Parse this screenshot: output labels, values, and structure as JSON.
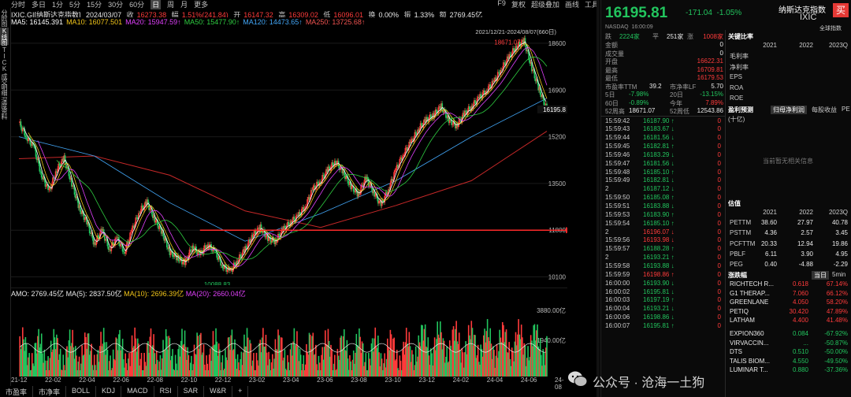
{
  "toolbar": {
    "left": [
      "分时",
      "多日",
      "1分",
      "5分",
      "15分",
      "30分",
      "60分",
      "日",
      "周",
      "月",
      "更多"
    ],
    "selected": "日",
    "right": [
      "F9",
      "复权",
      "超级叠加",
      "画线",
      "工具"
    ]
  },
  "rail": [
    "分时图",
    "K线图",
    "TICK",
    "成交明细",
    "深度资料"
  ],
  "info": {
    "name": "IXIC.GI[纳斯达克指数]",
    "date": "2024/03/07",
    "open_label": "收",
    "open": "16273.38",
    "amp_label": "幅",
    "amp": "1.51%(241.84)",
    "o_label": "开",
    "o": "16147.32",
    "h_label": "高",
    "h": "16309.02",
    "l_label": "低",
    "l": "16096.01",
    "turn_label": "换",
    "turn": "0.00%",
    "swing_label": "振",
    "swing": "1.33%",
    "vol_label": "额",
    "vol": "2769.45亿"
  },
  "mas": [
    {
      "label": "MA5",
      "value": "16145.391",
      "cls": "c-ma5"
    },
    {
      "label": "MA10",
      "value": "16077.501",
      "cls": "c-ma10"
    },
    {
      "label": "MA20",
      "value": "15947.59↑",
      "cls": "c-ma20"
    },
    {
      "label": "MA50",
      "value": "15477.90↑",
      "cls": "c-ma50"
    },
    {
      "label": "MA120",
      "value": "14473.65↑",
      "cls": "c-ma120"
    },
    {
      "label": "MA250",
      "value": "13725.68↑",
      "cls": "c-ma250"
    }
  ],
  "chart_data": {
    "type": "candlestick",
    "range_label": "2021/12/21-2024/08/07(660日)",
    "y_ticks": [
      "18600",
      "16900",
      "15200",
      "13500",
      "11800",
      "10100"
    ],
    "y_range": [
      9800,
      19200
    ],
    "current_price_label": "16195.8",
    "high_label": "18671.07",
    "low_label": "10088.83",
    "x_ticks": [
      "21-12",
      "22-02",
      "22-04",
      "22-06",
      "22-08",
      "22-10",
      "22-12",
      "23-02",
      "23-04",
      "23-06",
      "23-08",
      "23-10",
      "23-12",
      "24-02",
      "24-04",
      "24-06",
      "24-08"
    ],
    "close_path": [
      [
        0,
        15700
      ],
      [
        2,
        15200
      ],
      [
        4,
        14800
      ],
      [
        6,
        13800
      ],
      [
        8,
        13200
      ],
      [
        10,
        14000
      ],
      [
        12,
        14400
      ],
      [
        14,
        13500
      ],
      [
        16,
        12600
      ],
      [
        18,
        12100
      ],
      [
        20,
        11300
      ],
      [
        22,
        11800
      ],
      [
        24,
        11100
      ],
      [
        26,
        11500
      ],
      [
        28,
        11000
      ],
      [
        30,
        11800
      ],
      [
        32,
        12500
      ],
      [
        34,
        12800
      ],
      [
        36,
        12200
      ],
      [
        38,
        11700
      ],
      [
        40,
        11000
      ],
      [
        42,
        10800
      ],
      [
        44,
        10600
      ],
      [
        46,
        11200
      ],
      [
        48,
        10900
      ],
      [
        50,
        11300
      ],
      [
        52,
        11000
      ],
      [
        54,
        10500
      ],
      [
        56,
        10300
      ],
      [
        58,
        10700
      ],
      [
        60,
        11100
      ],
      [
        62,
        11600
      ],
      [
        64,
        11900
      ],
      [
        66,
        11500
      ],
      [
        68,
        11400
      ],
      [
        70,
        11800
      ],
      [
        72,
        12100
      ],
      [
        74,
        12300
      ],
      [
        76,
        12700
      ],
      [
        78,
        13300
      ],
      [
        80,
        13600
      ],
      [
        82,
        14000
      ],
      [
        84,
        14300
      ],
      [
        86,
        13900
      ],
      [
        88,
        13400
      ],
      [
        90,
        13100
      ],
      [
        92,
        13700
      ],
      [
        94,
        13200
      ],
      [
        96,
        12700
      ],
      [
        98,
        13300
      ],
      [
        100,
        14000
      ],
      [
        102,
        14600
      ],
      [
        104,
        15000
      ],
      [
        106,
        15500
      ],
      [
        108,
        15800
      ],
      [
        110,
        16000
      ],
      [
        112,
        16300
      ],
      [
        114,
        15800
      ],
      [
        116,
        15600
      ],
      [
        118,
        16000
      ],
      [
        120,
        16300
      ],
      [
        122,
        16600
      ],
      [
        124,
        16900
      ],
      [
        126,
        17200
      ],
      [
        128,
        17700
      ],
      [
        130,
        18100
      ],
      [
        132,
        18500
      ],
      [
        134,
        18671
      ],
      [
        136,
        17700
      ],
      [
        138,
        16900
      ],
      [
        140,
        16196
      ]
    ],
    "ma_long_path": [
      [
        0,
        14400
      ],
      [
        20,
        14500
      ],
      [
        40,
        13800
      ],
      [
        60,
        12500
      ],
      [
        80,
        11900
      ],
      [
        100,
        12700
      ],
      [
        120,
        13600
      ],
      [
        140,
        15400
      ]
    ],
    "arrow_level": 11800,
    "amo_label": "AMO: 2769.45亿",
    "amo_ma5": "MA(5): 2837.50亿",
    "amo_ma10": "MA(10): 2696.39亿",
    "amo_ma20": "MA(20): 2660.04亿",
    "vol_ticks": [
      "3880.00亿",
      "1940.00亿"
    ]
  },
  "indicators": [
    "市盈率",
    "市净率",
    "BOLL",
    "KDJ",
    "MACD",
    "RSI",
    "SAR",
    "W&R",
    "+"
  ],
  "quote": {
    "price": "16195.81",
    "change": "-171.04",
    "pct": "-1.05%",
    "name": "纳斯达克指数",
    "code": "IXIC",
    "buy": "买",
    "global_label": "全球指数",
    "market": "NASDAQ",
    "time": "16:00:09"
  },
  "summary": [
    {
      "k": "跌",
      "v": "2224家",
      "k2": "平",
      "v2": "251家",
      "k3": "涨",
      "v3": "1008家"
    },
    {
      "k": "金额",
      "v": "0"
    },
    {
      "k": "成交量",
      "v": "0"
    },
    {
      "k": "开盘",
      "v": "16622.31",
      "cls": "r"
    },
    {
      "k": "最高",
      "v": "16709.81",
      "cls": "r"
    },
    {
      "k": "最低",
      "v": "16179.53",
      "cls": "r"
    }
  ],
  "pe_row": {
    "k": "市盈率TTM",
    "v": "39.2",
    "k2": "市净率LF",
    "v2": "5.70"
  },
  "perf": [
    {
      "k": "5日",
      "v": "-7.98%",
      "k2": "20日",
      "v2": "-13.15%"
    },
    {
      "k": "60日",
      "v": "-0.89%",
      "k2": "今年",
      "v2": "7.89%"
    },
    {
      "k": "52周高",
      "v": "18671.07",
      "k2": "52周低",
      "v2": "12543.86"
    }
  ],
  "ticks": [
    {
      "t": "15:59:42",
      "p": "16187.90",
      "v": "0"
    },
    {
      "t": "15:59:43",
      "p": "16183.67",
      "v": "0"
    },
    {
      "t": "15:59:44",
      "p": "16181.56",
      "v": "0"
    },
    {
      "t": "15:59:45",
      "p": "16182.81",
      "v": "0"
    },
    {
      "t": "15:59:46",
      "p": "16183.29",
      "v": "0"
    },
    {
      "t": "15:59:47",
      "p": "16181.56",
      "v": "0"
    },
    {
      "t": "15:59:48",
      "p": "16185.10",
      "v": "0"
    },
    {
      "t": "15:59:49",
      "p": "16182.81",
      "v": "0"
    },
    {
      "t": "2",
      "p": "16187.12",
      "v": "0"
    },
    {
      "t": "15:59:50",
      "p": "16185.08",
      "v": "0"
    },
    {
      "t": "15:59:51",
      "p": "16183.88",
      "v": "0"
    },
    {
      "t": "15:59:53",
      "p": "16183.90",
      "v": "0"
    },
    {
      "t": "15:59:54",
      "p": "16185.10",
      "v": "0"
    },
    {
      "t": "2",
      "p": "16196.07",
      "v": "0"
    },
    {
      "t": "15:59:56",
      "p": "16193.98",
      "v": "0"
    },
    {
      "t": "15:59:57",
      "p": "16188.28",
      "v": "0"
    },
    {
      "t": "2",
      "p": "16193.21",
      "v": "0"
    },
    {
      "t": "15:59:58",
      "p": "16193.88",
      "v": "0"
    },
    {
      "t": "15:59:59",
      "p": "16198.86",
      "v": "0"
    },
    {
      "t": "16:00:00",
      "p": "16193.90",
      "v": "0"
    },
    {
      "t": "16:00:02",
      "p": "16195.81",
      "v": "0"
    },
    {
      "t": "16:00:03",
      "p": "16197.19",
      "v": "0"
    },
    {
      "t": "16:00:04",
      "p": "16193.21",
      "v": "0"
    },
    {
      "t": "16:00:06",
      "p": "16198.86",
      "v": "0"
    },
    {
      "t": "16:00:07",
      "p": "16195.81",
      "v": "0"
    }
  ],
  "ratios": {
    "title": "关键比率",
    "years": [
      "2021",
      "2022",
      "2023Q"
    ],
    "rows": [
      "毛利率",
      "净利率",
      "EPS",
      "ROA",
      "ROE"
    ]
  },
  "forecast": {
    "title": "盈利预测",
    "unit": "(十亿)",
    "tabs": [
      "归母净利润",
      "每股收益",
      "PE"
    ],
    "empty": "当前暂无相关信息"
  },
  "valuation": {
    "title": "估值",
    "years": [
      "2021",
      "2022",
      "2023Q"
    ],
    "rows": [
      {
        "k": "PETTM",
        "v": [
          "38.60",
          "27.97",
          "40.78"
        ]
      },
      {
        "k": "PSTTM",
        "v": [
          "4.36",
          "2.57",
          "3.45"
        ]
      },
      {
        "k": "PCFTTM",
        "v": [
          "20.33",
          "12.94",
          "19.86"
        ]
      },
      {
        "k": "PBLF",
        "v": [
          "6.11",
          "3.90",
          "4.95"
        ]
      },
      {
        "k": "PEG",
        "v": [
          "0.40",
          "-4.88",
          "-2.29"
        ]
      }
    ]
  },
  "gainers": {
    "title": "涨跌幅",
    "tabs": [
      "当日",
      "5min"
    ],
    "rows": [
      {
        "n": "RICHTECH R...",
        "p": "0.618",
        "c": "67.14%",
        "cls": "r"
      },
      {
        "n": "G1 THERAP...",
        "p": "7.060",
        "c": "66.12%",
        "cls": "r"
      },
      {
        "n": "GREENLANE",
        "p": "4.050",
        "c": "58.20%",
        "cls": "r"
      },
      {
        "n": "PETIQ",
        "p": "30.420",
        "c": "47.89%",
        "cls": "r"
      },
      {
        "n": "LATHAM",
        "p": "4.400",
        "c": "41.48%",
        "cls": "r"
      },
      {
        "n": "EXPION360",
        "p": "0.084",
        "c": "-67.92%",
        "cls": "g"
      },
      {
        "n": "VIRVACCIN...",
        "p": "...",
        "c": "-50.87%",
        "cls": "g"
      },
      {
        "n": "DTS",
        "p": "0.510",
        "c": "-50.00%",
        "cls": "g"
      },
      {
        "n": "TALIS BIOM...",
        "p": "4.550",
        "c": "-49.50%",
        "cls": "g"
      },
      {
        "n": "LUMINAR T...",
        "p": "0.880",
        "c": "-37.36%",
        "cls": "g"
      }
    ]
  },
  "watermark": "公众号 · 沧海一土狗"
}
